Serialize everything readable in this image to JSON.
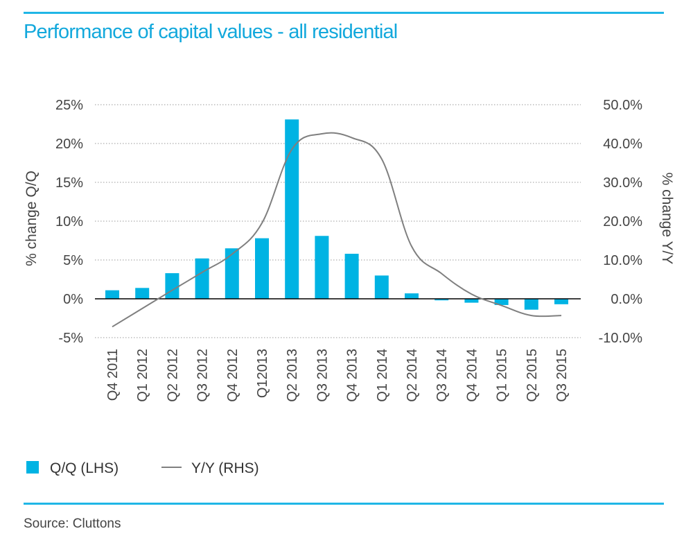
{
  "title": "Performance of capital values - all residential",
  "source": "Source: Cluttons",
  "colors": {
    "accent": "#1fb6e6",
    "bars": "#00b3e3",
    "line": "#7f7f7f",
    "grid": "#9a9a9a"
  },
  "chart_data": {
    "type": "bar",
    "categories": [
      "Q4 2011",
      "Q1 2012",
      "Q2 2012",
      "Q3 2012",
      "Q4 2012",
      "Q12013",
      "Q2 2013",
      "Q3 2013",
      "Q4 2013",
      "Q1 2014",
      "Q2 2014",
      "Q3 2014",
      "Q4 2014",
      "Q1 2015",
      "Q2 2015",
      "Q3 2015"
    ],
    "series": [
      {
        "name": "Q/Q (LHS)",
        "type": "bar",
        "axis": "left",
        "values": [
          1.1,
          1.4,
          3.3,
          5.2,
          6.5,
          7.8,
          23.1,
          8.1,
          5.8,
          3.0,
          0.7,
          -0.2,
          -0.5,
          -0.8,
          -1.4,
          -0.7
        ]
      },
      {
        "name": "Y/Y (RHS)",
        "type": "line",
        "axis": "right",
        "values": [
          -7.2,
          -2.5,
          2.2,
          6.8,
          11.5,
          19.5,
          38.5,
          42.5,
          41.5,
          36.0,
          13.5,
          6.5,
          1.2,
          -1.7,
          -4.3,
          -4.3
        ]
      }
    ],
    "ylabel_left": "% change Q/Q",
    "ylabel_right": "% change Y/Y",
    "ylim_left": [
      -5,
      25
    ],
    "ylim_right": [
      -10,
      50
    ],
    "yticks_left": [
      "25%",
      "20%",
      "15%",
      "10%",
      "5%",
      "0%",
      "-5%"
    ],
    "yticks_right": [
      "50.0%",
      "40.0%",
      "30.0%",
      "20.0%",
      "10.0%",
      "0.0%",
      "-10.0%"
    ],
    "grid": "dotted-horizontal",
    "legend_position": "bottom-left"
  }
}
